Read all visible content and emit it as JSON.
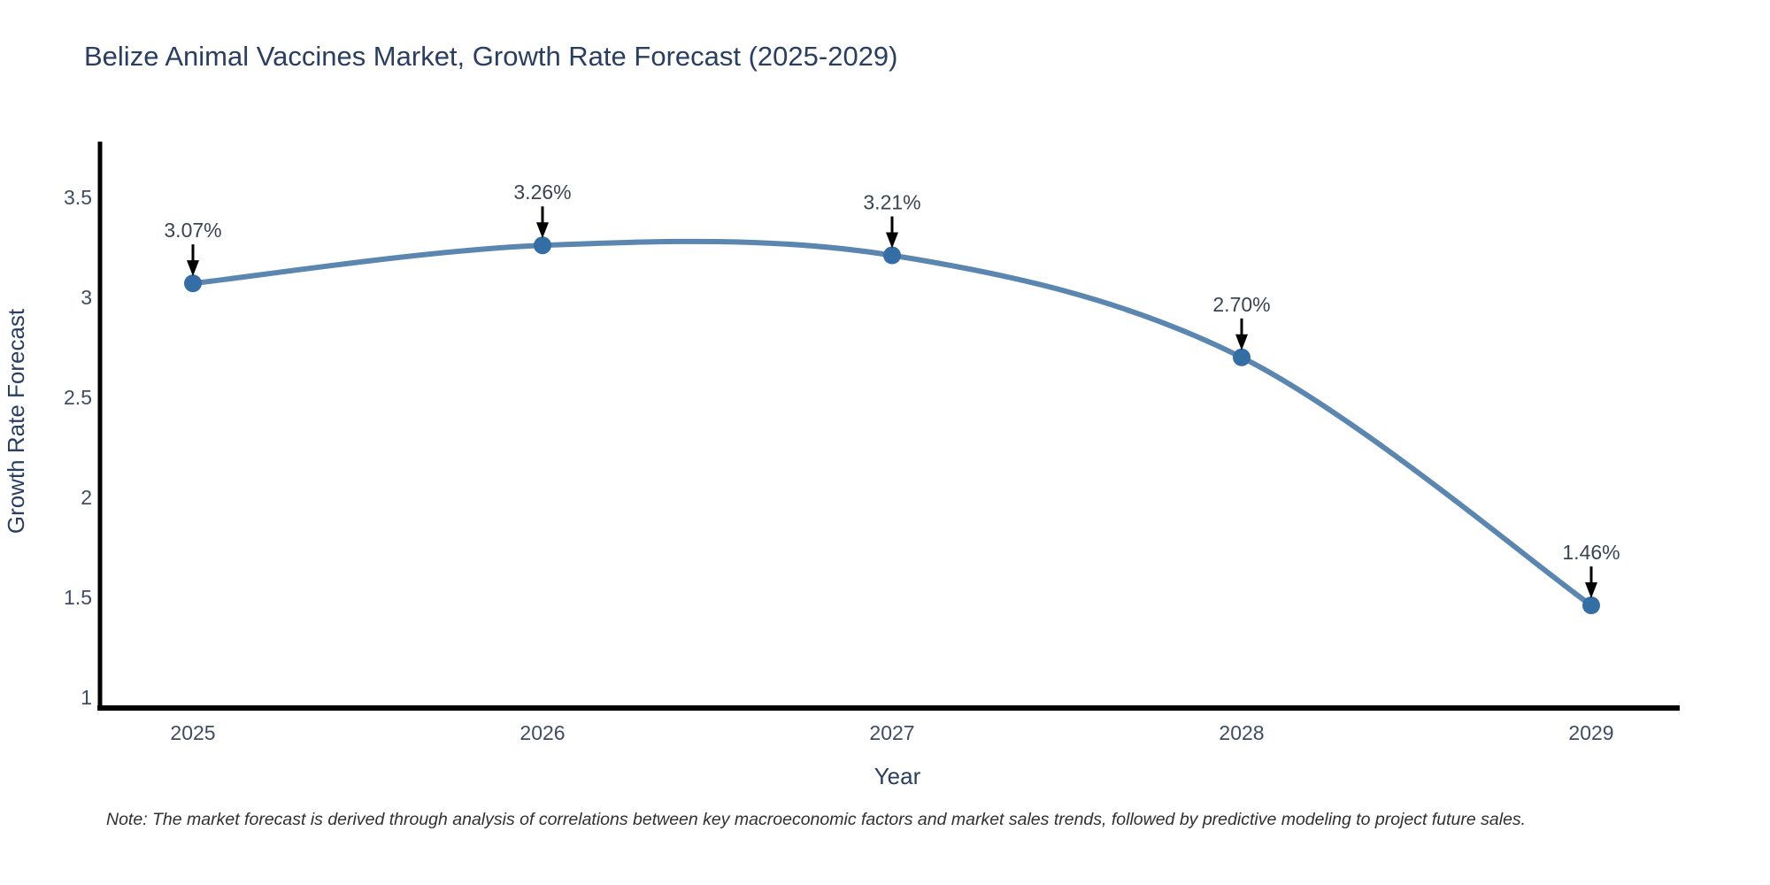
{
  "chart_data": {
    "type": "line",
    "title": "Belize Animal Vaccines Market, Growth Rate Forecast (2025-2029)",
    "xlabel": "Year",
    "ylabel": "Growth Rate Forecast",
    "x": [
      2025,
      2026,
      2027,
      2028,
      2029
    ],
    "series": [
      {
        "name": "Growth Rate Forecast",
        "values": [
          3.07,
          3.26,
          3.21,
          2.7,
          1.46
        ],
        "point_labels": [
          "3.07%",
          "3.26%",
          "3.21%",
          "2.70%",
          "1.46%"
        ]
      }
    ],
    "xtick_labels": [
      "2025",
      "2026",
      "2027",
      "2028",
      "2029"
    ],
    "yticks": [
      1,
      1.5,
      2,
      2.5,
      3,
      3.5
    ],
    "ytick_labels": [
      "1",
      "1.5",
      "2",
      "2.5",
      "3",
      "3.5"
    ],
    "ylim": [
      0.95,
      3.83
    ],
    "grid": false,
    "legend_position": "none",
    "line_shape": "spline",
    "line_color": "#5a86b0",
    "marker_color": "#346ea5",
    "axis_color": "#000000",
    "annotation_arrow_color": "#000000",
    "annotation_text_color": "#3b4452",
    "tick_label_color": "#3f4c63",
    "axis_title_color": "#2a3f5f",
    "title_color": "#2a3f5f",
    "note": "Note: The market forecast is derived through analysis of correlations between key macroeconomic factors and market sales trends, followed by predictive modeling to project future sales."
  }
}
